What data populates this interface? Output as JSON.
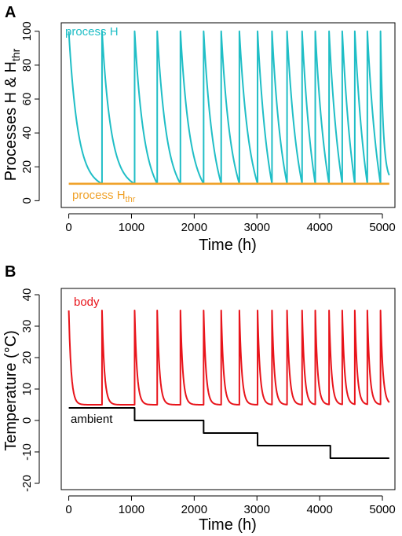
{
  "chart_data": [
    {
      "panel": "A",
      "type": "line",
      "title": "",
      "xlabel": "Time (h)",
      "ylabel": "Processes H & H",
      "ylabel_sub": "thr",
      "xlim": [
        -120,
        5200
      ],
      "ylim": [
        -4,
        105
      ],
      "xticks": [
        0,
        1000,
        2000,
        3000,
        4000,
        5000
      ],
      "yticks": [
        0,
        20,
        40,
        60,
        80,
        100
      ],
      "series": [
        {
          "name": "process H",
          "color": "#20BEC6",
          "form": "exponential-decay-with-resets",
          "high": 100,
          "low": 10,
          "reset_times": [
            0,
            530,
            1050,
            1410,
            1780,
            2150,
            2430,
            2720,
            3010,
            3240,
            3480,
            3720,
            3930,
            4150,
            4360,
            4560,
            4760,
            4970
          ],
          "end": {
            "x": 5110,
            "y": 15
          }
        },
        {
          "name": "process H",
          "name_sub": "thr",
          "color": "#F0A22A",
          "form": "constant",
          "x": [
            0,
            5110
          ],
          "y": [
            10,
            10
          ]
        }
      ]
    },
    {
      "panel": "B",
      "type": "line",
      "title": "",
      "xlabel": "Time (h)",
      "ylabel": "Temperature (°C)",
      "xlim": [
        -120,
        5200
      ],
      "ylim": [
        -22,
        42
      ],
      "xticks": [
        0,
        1000,
        2000,
        3000,
        4000,
        5000
      ],
      "yticks": [
        -20,
        -10,
        0,
        10,
        20,
        30,
        40
      ],
      "series": [
        {
          "name": "body",
          "color": "#E8141B",
          "form": "spikes-with-fast-decay",
          "peak": 35,
          "spike_times": [
            0,
            530,
            1050,
            1410,
            1780,
            2150,
            2430,
            2720,
            3010,
            3240,
            3480,
            3720,
            3930,
            4150,
            4360,
            4560,
            4760,
            4970
          ],
          "baseline_steps": [
            {
              "from": 0,
              "to": 1050,
              "y": 5
            },
            {
              "from": 1050,
              "to": 5110,
              "y": 5
            }
          ]
        },
        {
          "name": "ambient",
          "color": "#000000",
          "form": "step",
          "steps": [
            {
              "from": 0,
              "to": 1050,
              "y": 4
            },
            {
              "from": 1050,
              "to": 2150,
              "y": 0
            },
            {
              "from": 2150,
              "to": 3010,
              "y": -4
            },
            {
              "from": 3010,
              "to": 4170,
              "y": -8
            },
            {
              "from": 4170,
              "to": 5110,
              "y": -12
            }
          ]
        }
      ]
    }
  ]
}
